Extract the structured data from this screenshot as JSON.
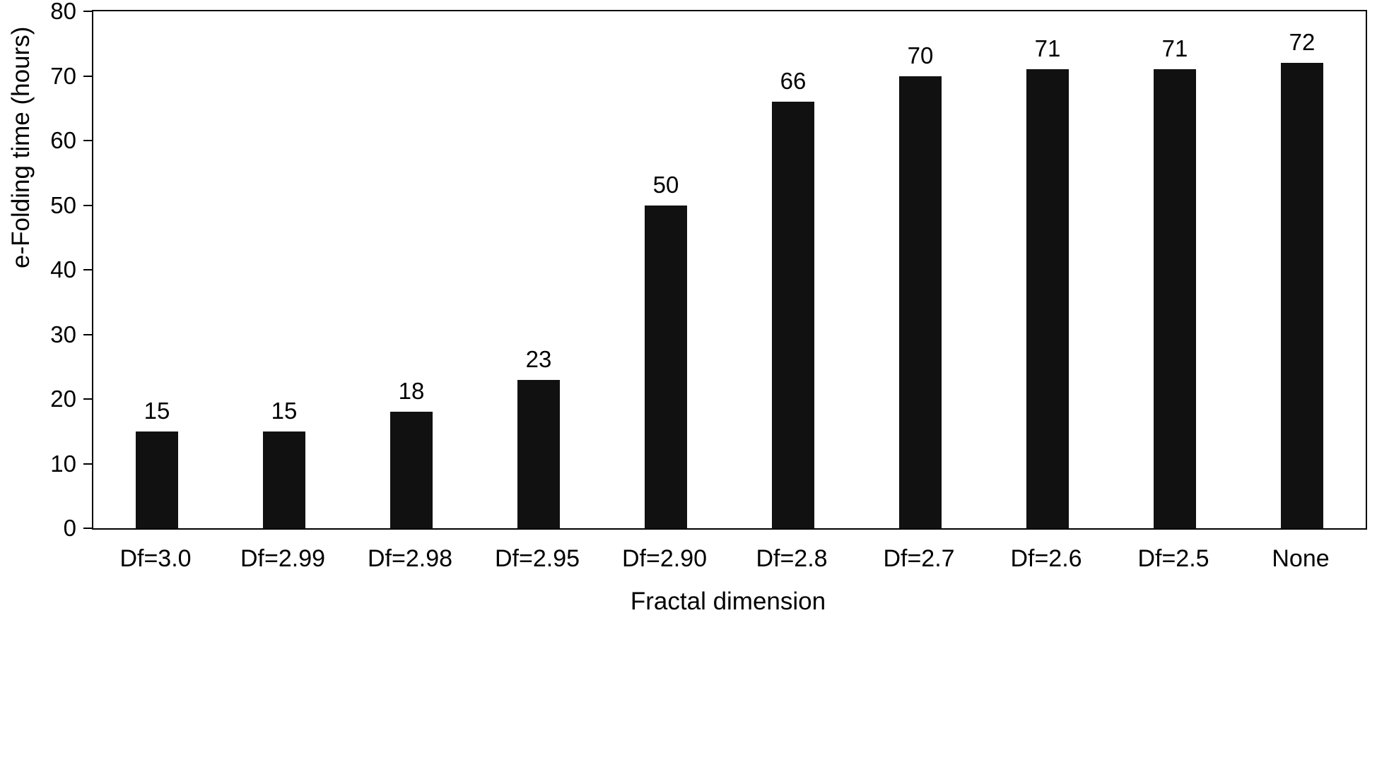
{
  "chart_data": {
    "type": "bar",
    "categories": [
      "Df=3.0",
      "Df=2.99",
      "Df=2.98",
      "Df=2.95",
      "Df=2.90",
      "Df=2.8",
      "Df=2.7",
      "Df=2.6",
      "Df=2.5",
      "None"
    ],
    "values": [
      15,
      15,
      18,
      23,
      50,
      66,
      70,
      71,
      71,
      72
    ],
    "title": "",
    "xlabel": "Fractal dimension",
    "ylabel": "e-Folding time (hours)",
    "ylim": [
      0,
      80
    ],
    "yticks": [
      0,
      10,
      20,
      30,
      40,
      50,
      60,
      70,
      80
    ],
    "bar_color": "#111111",
    "grid": false,
    "legend": false,
    "layout": {
      "bar_width_fraction": 0.33
    }
  }
}
